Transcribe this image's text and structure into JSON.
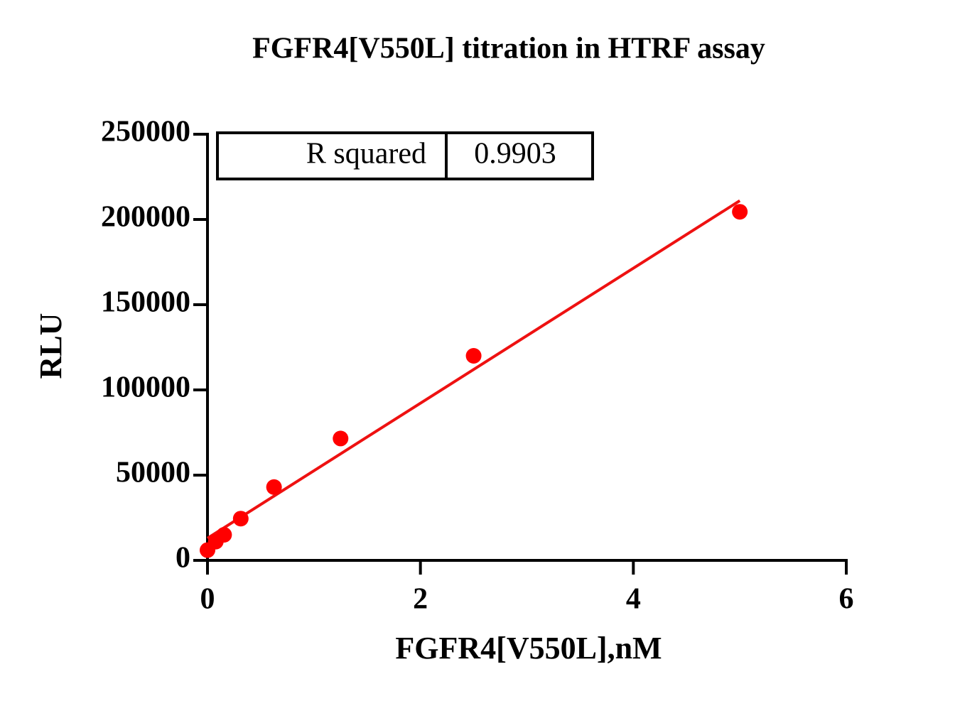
{
  "chart_data": {
    "type": "scatter",
    "title": "FGFR4[V550L] titration in HTRF assay",
    "x_label": "FGFR4[V550L],nM",
    "y_label": "RLU",
    "series": [
      {
        "x": [
          0,
          0.078,
          0.156,
          0.3125,
          0.625,
          1.25,
          2.5,
          5
        ],
        "values": [
          6000,
          11000,
          15000,
          24500,
          43000,
          71500,
          120000,
          204500
        ],
        "color": "#ff0000"
      }
    ],
    "fit": {
      "x": [
        0,
        5
      ],
      "values": [
        13000,
        211000
      ],
      "color": "#ee1111"
    },
    "stats": {
      "label": "R squared",
      "value": 0.9903
    },
    "xlim": [
      0,
      6
    ],
    "xticks": [
      0,
      2,
      4,
      6
    ],
    "ylim": [
      0,
      250000
    ],
    "yticks": [
      0,
      50000,
      100000,
      150000,
      200000,
      250000
    ]
  }
}
